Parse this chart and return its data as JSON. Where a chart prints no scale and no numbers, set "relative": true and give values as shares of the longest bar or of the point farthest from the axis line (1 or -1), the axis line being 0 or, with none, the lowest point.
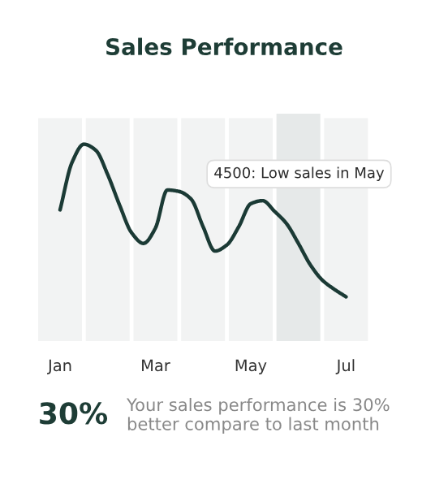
{
  "chart_data": {
    "type": "line",
    "title": "Sales Performance",
    "relative": true,
    "tick_labels": "x",
    "grid": false,
    "legend": false,
    "marker": "none",
    "line_style": "solid",
    "categories": [
      "Jan",
      null,
      null,
      null,
      null,
      null,
      null,
      null,
      "Mar",
      null,
      null,
      null,
      null,
      null,
      null,
      null,
      "May",
      null,
      null,
      null,
      null,
      null,
      null,
      null,
      "Jul"
    ],
    "series": [
      {
        "color": "#1b3a35",
        "values": [
          0.57,
          0.88,
          1.0,
          0.96,
          0.8,
          0.6,
          0.42,
          0.35,
          0.45,
          0.7,
          0.69,
          0.64,
          0.46,
          0.3,
          0.34,
          0.46,
          0.61,
          0.63,
          0.56,
          0.48,
          0.35,
          0.21,
          0.11,
          0.05,
          0.0
        ]
      }
    ],
    "annotations": [
      "4500: Low sales in May",
      "30%",
      "Your sales performance is 30% better compare to last month"
    ]
  }
}
